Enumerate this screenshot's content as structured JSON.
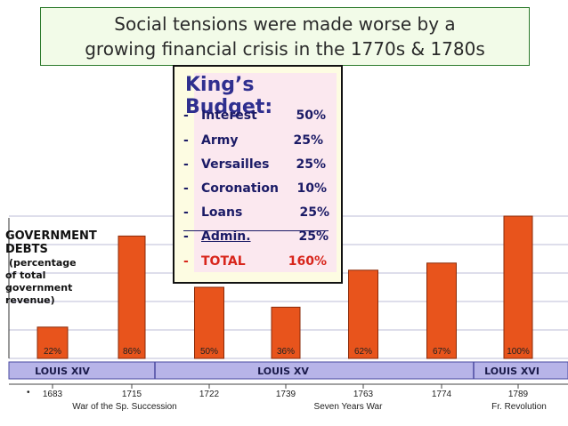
{
  "title": {
    "line1": "Social tensions were made worse by a",
    "line2": "growing financial crisis  in the 1770s & 1780s"
  },
  "budget": {
    "title": "King’s Budget:",
    "rows": [
      {
        "dash": "-",
        "name": "Interest",
        "pct": "50%"
      },
      {
        "dash": "-",
        "name": "Army",
        "pct": "25%"
      },
      {
        "dash": "-",
        "name": "Versailles",
        "pct": "25%"
      },
      {
        "dash": "-",
        "name": "Coronation",
        "pct": "10%"
      },
      {
        "dash": "-",
        "name": "Loans",
        "pct": "25%"
      },
      {
        "dash": "-",
        "name": "Admin.",
        "pct": "25%"
      }
    ],
    "total": {
      "dash": "-",
      "name": "TOTAL",
      "pct": "160%"
    }
  },
  "side_label": {
    "line1": "GOVERNMENT",
    "line2": "DEBTS",
    "line3": "(percentage",
    "line4": "of total",
    "line5": "government",
    "line6": "revenue)"
  },
  "chart_data": {
    "type": "bar",
    "categories": [
      "1683",
      "1715",
      "1722",
      "1739",
      "1763",
      "1774",
      "1789"
    ],
    "values": [
      22,
      86,
      50,
      36,
      62,
      67,
      100
    ],
    "value_labels": [
      "22%",
      "86%",
      "50%",
      "36%",
      "62%",
      "67%",
      "100%"
    ],
    "ylim": [
      0,
      100
    ],
    "reigns": [
      "LOUIS XIV",
      "LOUIS XV",
      "LOUIS XVI"
    ],
    "events": [
      "War of the Sp. Succession",
      "Seven Years War",
      "Fr. Revolution"
    ],
    "colors": {
      "bar": "#e8541c",
      "bar_edge": "#8a2a08",
      "band": "#b7b4e8",
      "band_edge": "#4a4aa0",
      "grid": "#7b7bb0",
      "bg": "#ffffff"
    }
  }
}
